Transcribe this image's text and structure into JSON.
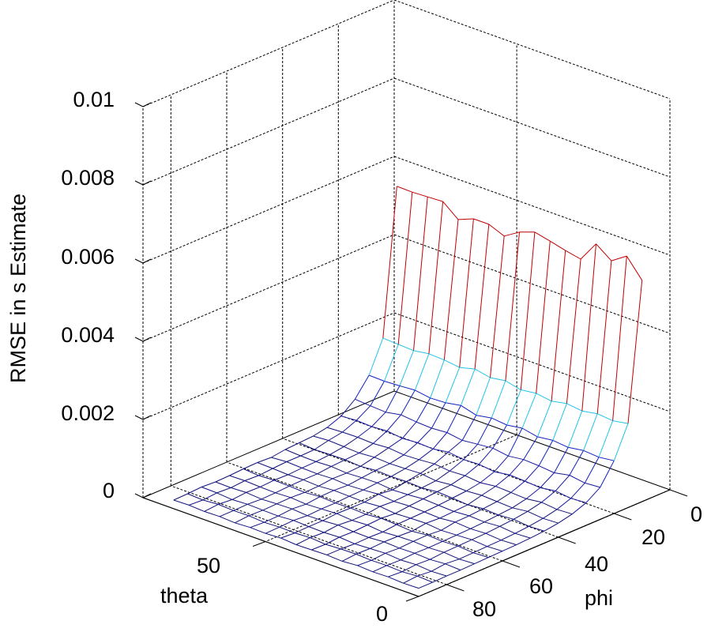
{
  "chart_data": {
    "type": "mesh3d",
    "title": "",
    "xlabel": "theta",
    "ylabel": "phi",
    "zlabel": "RMSE in s Estimate",
    "xlim": [
      0,
      90
    ],
    "ylim": [
      0,
      90
    ],
    "zlim": [
      0,
      0.01
    ],
    "grid": true,
    "x_ticks": [
      "0",
      "50"
    ],
    "y_ticks": [
      "0",
      "20",
      "40",
      "60",
      "80"
    ],
    "z_ticks": [
      "0",
      "0.002",
      "0.004",
      "0.006",
      "0.008",
      "0.01"
    ],
    "theta": [
      0,
      5,
      10,
      15,
      20,
      25,
      30,
      35,
      40,
      45,
      50,
      55,
      60,
      65,
      70,
      75,
      80
    ],
    "phi": [
      10,
      15,
      20,
      25,
      30,
      35,
      40,
      45,
      50,
      55,
      60,
      65,
      70,
      75,
      80,
      85,
      90
    ],
    "z_rows_by_phi": [
      [
        0.00566,
        0.00614,
        0.00588,
        0.00617,
        0.00564,
        0.00572,
        0.00582,
        0.00591,
        0.00577,
        0.00553,
        0.00569,
        0.00569,
        0.00553,
        0.00585,
        0.00583,
        0.00581,
        0.00582
      ],
      [
        0.00215,
        0.00208,
        0.00212,
        0.00205,
        0.0021,
        0.00202,
        0.00208,
        0.00203,
        0.00212,
        0.00206,
        0.00214,
        0.00204,
        0.00209,
        0.00211,
        0.00205,
        0.00207,
        0.00209
      ],
      [
        0.00135,
        0.0013,
        0.00133,
        0.00127,
        0.00131,
        0.00126,
        0.00134,
        0.00128,
        0.00132,
        0.00125,
        0.00136,
        0.00129,
        0.00127,
        0.00133,
        0.0013,
        0.00128,
        0.00129
      ],
      [
        0.00082,
        0.00079,
        0.00085,
        0.00077,
        0.00081,
        0.00083,
        0.00078,
        0.00084,
        0.0008,
        0.00076,
        0.00082,
        0.00079,
        0.00081,
        0.00085,
        0.00078,
        0.0008,
        0.00083
      ],
      [
        0.00058,
        0.00055,
        0.0006,
        0.00054,
        0.00057,
        0.00059,
        0.00053,
        0.00058,
        0.00056,
        0.00061,
        0.00055,
        0.00057,
        0.00054,
        0.00059,
        0.00056,
        0.00058,
        0.00055
      ],
      [
        0.00044,
        0.00042,
        0.00046,
        0.00041,
        0.00043,
        0.00045,
        0.0004,
        0.00044,
        0.00042,
        0.00046,
        0.00043,
        0.00041,
        0.00045,
        0.00042,
        0.00044,
        0.00043,
        0.00041
      ],
      [
        0.00036,
        0.00034,
        0.00038,
        0.00033,
        0.00035,
        0.00037,
        0.00034,
        0.00036,
        0.00032,
        0.00037,
        0.00035,
        0.00034,
        0.00036,
        0.00033,
        0.00035,
        0.00037,
        0.00034
      ],
      [
        0.00031,
        0.00029,
        0.00033,
        0.0003,
        0.00032,
        0.00028,
        0.00031,
        0.00033,
        0.00029,
        0.00031,
        0.0003,
        0.00032,
        0.00028,
        0.00031,
        0.0003,
        0.00029,
        0.00032
      ],
      [
        0.00028,
        0.00026,
        0.0003,
        0.00027,
        0.00029,
        0.00026,
        0.00028,
        0.0003,
        0.00027,
        0.00025,
        0.00029,
        0.00028,
        0.00026,
        0.00029,
        0.00027,
        0.00028,
        0.0003
      ],
      [
        0.00026,
        0.00024,
        0.00027,
        0.00025,
        0.00028,
        0.00024,
        0.00026,
        0.00027,
        0.00025,
        0.00029,
        0.00026,
        0.00024,
        0.00027,
        0.00025,
        0.00026,
        0.00028,
        0.00025
      ],
      [
        0.00025,
        0.00023,
        0.00026,
        0.00024,
        0.00022,
        0.00026,
        0.00025,
        0.00023,
        0.00027,
        0.00024,
        0.00025,
        0.00026,
        0.00023,
        0.00025,
        0.00024,
        0.00026,
        0.00027
      ],
      [
        0.00024,
        0.00022,
        0.00025,
        0.00023,
        0.00025,
        0.00021,
        0.00024,
        0.00026,
        0.00022,
        0.00024,
        0.00023,
        0.00025,
        0.00022,
        0.00024,
        0.00025,
        0.00023,
        0.00026
      ],
      [
        0.00023,
        0.00021,
        0.00024,
        0.00022,
        0.00024,
        0.00023,
        0.0002,
        0.00024,
        0.00022,
        0.00025,
        0.00023,
        0.00021,
        0.00024,
        0.00022,
        0.00023,
        0.00025,
        0.00024
      ],
      [
        0.00022,
        0.00024,
        0.00021,
        0.00023,
        0.00022,
        0.00024,
        0.00021,
        0.00022,
        0.00025,
        0.00022,
        0.00021,
        0.00024,
        0.00023,
        0.00021,
        0.00024,
        0.00022,
        0.00023
      ],
      [
        0.00022,
        0.0002,
        0.00023,
        0.00021,
        0.00024,
        0.00022,
        0.0002,
        0.00023,
        0.00021,
        0.00022,
        0.00024,
        0.00021,
        0.00022,
        0.00023,
        0.00021,
        0.00024,
        0.00025
      ],
      [
        0.00021,
        0.00023,
        0.0002,
        0.00022,
        0.00021,
        0.00023,
        0.00022,
        0.0002,
        0.00023,
        0.00021,
        0.00022,
        0.0002,
        0.00023,
        0.00022,
        0.00024,
        0.00021,
        0.00023
      ],
      [
        0.00021,
        0.0002,
        0.00022,
        0.00021,
        0.00023,
        0.0002,
        0.00022,
        0.00021,
        0.0002,
        0.00023,
        0.00021,
        0.00022,
        0.0002,
        0.00022,
        0.00021,
        0.00023,
        0.00022
      ]
    ],
    "colormap_endpoints": {
      "low": "#000080",
      "mid": "#00c8ff",
      "high": "#c00000"
    }
  },
  "axes": {
    "z_label": "RMSE in s Estimate",
    "x_label": "theta",
    "y_label": "phi",
    "z_tick_labels": [
      "0",
      "0.002",
      "0.004",
      "0.006",
      "0.008",
      "0.01"
    ],
    "theta_tick_labels": [
      "0",
      "50"
    ],
    "phi_tick_labels": [
      "0",
      "20",
      "40",
      "60",
      "80"
    ]
  }
}
